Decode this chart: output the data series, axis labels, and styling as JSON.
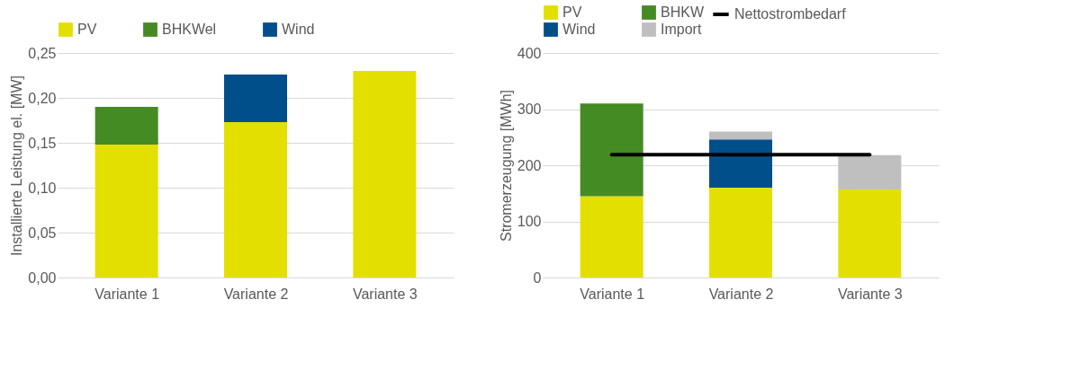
{
  "chart_data": [
    {
      "type": "bar",
      "stacked": true,
      "ylabel": "Installierte Leistung el. [MW]",
      "categories": [
        "Variante 1",
        "Variante 2",
        "Variante 3"
      ],
      "ylim": [
        0,
        0.25
      ],
      "yticks": [
        {
          "value": 0,
          "label": "0,00"
        },
        {
          "value": 0.05,
          "label": "0,05"
        },
        {
          "value": 0.1,
          "label": "0,10"
        },
        {
          "value": 0.15,
          "label": "0,15"
        },
        {
          "value": 0.2,
          "label": "0,20"
        },
        {
          "value": 0.25,
          "label": "0,25"
        }
      ],
      "grid": "y",
      "legend": "top",
      "series": [
        {
          "name": "PV",
          "color": "#e3e000",
          "values": [
            0.148,
            0.173,
            0.23
          ]
        },
        {
          "name": "BHKWel",
          "color": "#458b23",
          "values": [
            0.042,
            null,
            null
          ]
        },
        {
          "name": "Wind",
          "color": "#004f8b",
          "values": [
            null,
            0.053,
            null
          ]
        }
      ]
    },
    {
      "type": "bar",
      "stacked": true,
      "ylabel": "Stromerzeugung [MWh]",
      "categories": [
        "Variante 1",
        "Variante 2",
        "Variante 3"
      ],
      "ylim": [
        0,
        400
      ],
      "yticks": [
        0,
        100,
        200,
        300,
        400
      ],
      "grid": "y",
      "legend": "top",
      "series": [
        {
          "name": "PV",
          "color": "#e3e000",
          "values": [
            145,
            160,
            157
          ]
        },
        {
          "name": "BHKW",
          "color": "#458b23",
          "values": [
            165,
            null,
            null
          ]
        },
        {
          "name": "Wind",
          "color": "#004f8b",
          "values": [
            null,
            86,
            null
          ]
        },
        {
          "name": "Import",
          "color": "#bfbfbf",
          "values": [
            null,
            14,
            61
          ]
        },
        {
          "name": "Nettostrombedarf",
          "type": "line",
          "color": "#000000",
          "values": [
            219,
            219,
            219
          ]
        }
      ]
    }
  ]
}
